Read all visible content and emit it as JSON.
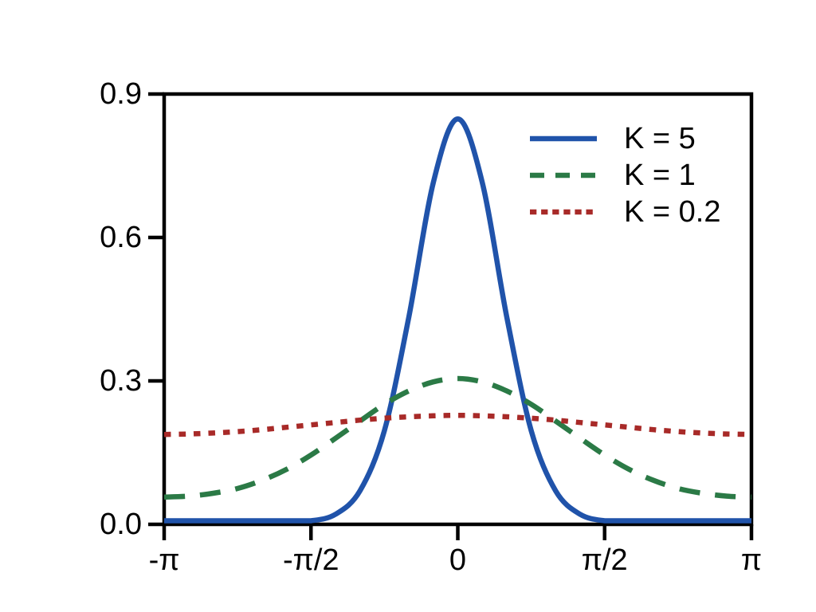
{
  "figure": {
    "background_color": "#ffffff",
    "axis_color": "#000000",
    "text_color": "#000000"
  },
  "chart_data": {
    "type": "line",
    "title": "",
    "xlabel": "",
    "ylabel": "",
    "xlim_radians": [
      -3.1416,
      3.1416
    ],
    "ylim": [
      0,
      0.9
    ],
    "grid": false,
    "legend_position": "top-right",
    "x_ticks": [
      {
        "value": -3.1416,
        "label": "-π"
      },
      {
        "value": -1.5708,
        "label": "-π/2"
      },
      {
        "value": 0,
        "label": "0"
      },
      {
        "value": 1.5708,
        "label": "π/2"
      },
      {
        "value": 3.1416,
        "label": "π"
      }
    ],
    "y_ticks": [
      {
        "value": 0,
        "label": "0.0"
      },
      {
        "value": 0.3,
        "label": "0.3"
      },
      {
        "value": 0.6,
        "label": "0.6"
      },
      {
        "value": 0.9,
        "label": "0.9"
      }
    ],
    "x_sample_radians": [
      -3.1416,
      -2.8798,
      -2.618,
      -2.3562,
      -2.0944,
      -1.8326,
      -1.5708,
      -1.309,
      -1.0472,
      -0.7854,
      -0.5236,
      -0.2618,
      0,
      0.2618,
      0.5236,
      0.7854,
      1.0472,
      1.309,
      1.5708,
      1.8326,
      2.0944,
      2.3562,
      2.618,
      2.8798,
      3.1416
    ],
    "series": [
      {
        "label": "K = 5",
        "color": "#2053aa",
        "line_style": "solid",
        "peak_value": 0.848,
        "values": [
          0,
          0,
          0,
          0,
          0,
          0.002,
          0.006,
          0.021,
          0.07,
          0.196,
          0.434,
          0.715,
          0.848,
          0.715,
          0.434,
          0.196,
          0.07,
          0.021,
          0.006,
          0.002,
          0,
          0,
          0,
          0,
          0
        ]
      },
      {
        "label": "K = 1",
        "color": "#2b7a46",
        "line_style": "dashed",
        "peak_value": 0.305,
        "values": [
          0.057,
          0.059,
          0.065,
          0.075,
          0.092,
          0.115,
          0.145,
          0.18,
          0.216,
          0.251,
          0.279,
          0.298,
          0.305,
          0.298,
          0.279,
          0.251,
          0.216,
          0.18,
          0.145,
          0.115,
          0.092,
          0.075,
          0.065,
          0.059,
          0.057
        ]
      },
      {
        "label": "K = 0.2",
        "color": "#a82a28",
        "line_style": "dotted",
        "peak_value": 0.228,
        "values": [
          0.188,
          0.189,
          0.191,
          0.194,
          0.198,
          0.203,
          0.208,
          0.213,
          0.218,
          0.222,
          0.225,
          0.227,
          0.228,
          0.227,
          0.225,
          0.222,
          0.218,
          0.213,
          0.208,
          0.203,
          0.198,
          0.194,
          0.191,
          0.189,
          0.188
        ]
      }
    ]
  }
}
